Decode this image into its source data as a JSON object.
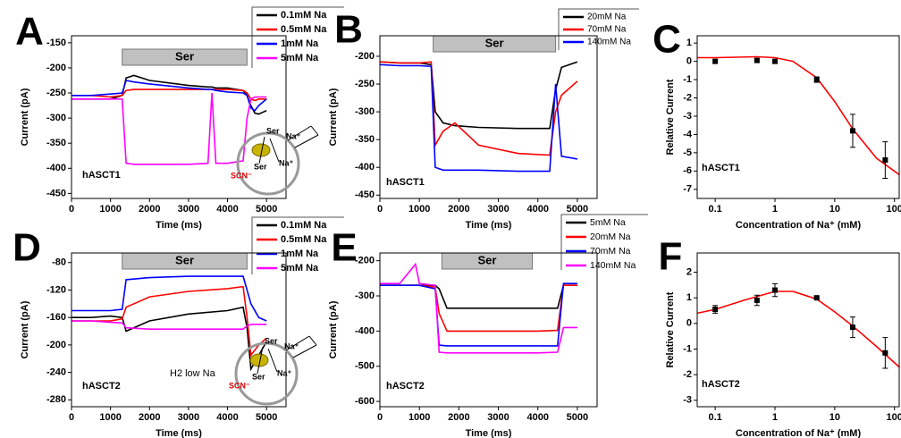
{
  "chart_data": [
    {
      "type": "line",
      "panel_label": "A",
      "x_label": "Time (ms)",
      "y_label": "Current (pA)",
      "xlim": [
        0,
        5500
      ],
      "ylim": [
        -460,
        -136
      ],
      "xticks": [
        0,
        1000,
        2000,
        3000,
        4000,
        5000
      ],
      "yticks": [
        -150,
        -200,
        -250,
        -300,
        -350,
        -400,
        -450
      ],
      "stim_bar": {
        "label": "Ser",
        "x": [
          1300,
          4500
        ]
      },
      "annotations": [
        "hASCT1"
      ],
      "inset_labels": [
        "Ser",
        "Na⁺",
        "Ser",
        "Na⁺",
        "SCN⁻"
      ],
      "x": [
        0,
        500,
        1000,
        1300,
        1400,
        1600,
        2000,
        3000,
        3500,
        3600,
        3700,
        4000,
        4400,
        4500,
        4600,
        4700,
        4800,
        5000
      ],
      "series": [
        {
          "name": "0.1mM Na",
          "color": "#000000",
          "values": [
            -262,
            -262,
            -262,
            -255,
            -220,
            -215,
            -225,
            -235,
            -238,
            -238,
            -240,
            -240,
            -245,
            -255,
            -275,
            -290,
            -292,
            -285
          ]
        },
        {
          "name": "0.5mM Na",
          "color": "#ff0000",
          "values": [
            -255,
            -255,
            -258,
            -255,
            -245,
            -243,
            -243,
            -243,
            -243,
            -243,
            -243,
            -243,
            -245,
            -250,
            -262,
            -265,
            -262,
            -262
          ]
        },
        {
          "name": "1mM Na",
          "color": "#0000ff",
          "values": [
            -255,
            -255,
            -252,
            -250,
            -225,
            -228,
            -232,
            -240,
            -243,
            -243,
            -245,
            -248,
            -250,
            -255,
            -280,
            -285,
            -275,
            -262
          ]
        },
        {
          "name": "5mM Na",
          "color": "#ff00ff",
          "values": [
            -262,
            -262,
            -262,
            -262,
            -390,
            -392,
            -392,
            -392,
            -390,
            -250,
            -390,
            -390,
            -385,
            -300,
            -262,
            -258,
            -258,
            -258
          ]
        }
      ]
    },
    {
      "type": "line",
      "panel_label": "B",
      "x_label": "Time (ms)",
      "y_label": "Current (pA)",
      "xlim": [
        0,
        5500
      ],
      "ylim": [
        -456,
        -163
      ],
      "xticks": [
        0,
        1000,
        2000,
        3000,
        4000,
        5000
      ],
      "yticks": [
        -200,
        -250,
        -300,
        -350,
        -400,
        -450
      ],
      "stim_bar": {
        "label": "Ser",
        "x": [
          1350,
          4450
        ]
      },
      "annotations": [
        "hASCT1"
      ],
      "x": [
        0,
        500,
        900,
        1000,
        1300,
        1400,
        1600,
        1900,
        2500,
        3500,
        4300,
        4450,
        4600,
        5000
      ],
      "series": [
        {
          "name": "20mM Na",
          "color": "#000000",
          "values": [
            -210,
            -212,
            -212,
            -212,
            -215,
            -300,
            -320,
            -325,
            -328,
            -330,
            -330,
            -260,
            -220,
            -210
          ]
        },
        {
          "name": "70mM Na",
          "color": "#ff0000",
          "values": [
            -210,
            -212,
            -212,
            -212,
            -210,
            -360,
            -335,
            -320,
            -360,
            -375,
            -378,
            -300,
            -270,
            -245
          ]
        },
        {
          "name": "140mM Na",
          "color": "#0000ff",
          "values": [
            -215,
            -217,
            -217,
            -217,
            -218,
            -400,
            -405,
            -405,
            -405,
            -407,
            -407,
            -250,
            -380,
            -385
          ]
        }
      ]
    },
    {
      "type": "scatter",
      "panel_label": "C",
      "x_label": "Concentration of Na⁺ (mM)",
      "y_label": "Relative Current",
      "log_x": true,
      "xlim": [
        0.05,
        120
      ],
      "ylim": [
        -7.5,
        1.4
      ],
      "xticks": [
        0.1,
        1,
        10,
        100
      ],
      "yticks": [
        1,
        0,
        -1,
        -2,
        -3,
        -4,
        -5,
        -6,
        -7
      ],
      "annotations": [
        "hASCT1"
      ],
      "color": "#000000",
      "x": [
        0.1,
        0.5,
        1,
        5,
        20,
        70
      ],
      "values": [
        0,
        0.05,
        0,
        -1,
        -3.8,
        -5.4
      ],
      "errors": [
        0.1,
        0.1,
        0.1,
        0.15,
        0.9,
        1.0
      ],
      "fit": {
        "color": "#ff0000",
        "x": [
          0.05,
          0.1,
          0.5,
          1,
          2,
          5,
          10,
          20,
          50,
          120
        ],
        "values": [
          0.2,
          0.2,
          0.25,
          0.2,
          0,
          -0.9,
          -2.2,
          -3.7,
          -5.3,
          -6.2
        ]
      }
    },
    {
      "type": "line",
      "panel_label": "D",
      "x_label": "Time (ms)",
      "y_label": "Current (pA)",
      "xlim": [
        0,
        5500
      ],
      "ylim": [
        -290,
        -66
      ],
      "xticks": [
        0,
        1000,
        2000,
        3000,
        4000,
        5000
      ],
      "yticks": [
        -80,
        -120,
        -160,
        -200,
        -240,
        -280
      ],
      "stim_bar": {
        "label": "Ser",
        "x": [
          1300,
          4500
        ]
      },
      "annotations": [
        "hASCT2",
        "H2 low Na"
      ],
      "inset_labels": [
        "Ser",
        "Na⁺",
        "Ser",
        "Na⁺",
        "SCN⁻"
      ],
      "x": [
        0,
        500,
        1000,
        1300,
        1400,
        2000,
        3000,
        4000,
        4400,
        4500,
        4600,
        4800,
        5000
      ],
      "series": [
        {
          "name": "0.1mM Na",
          "color": "#000000",
          "values": [
            -160,
            -160,
            -158,
            -160,
            -180,
            -165,
            -155,
            -150,
            -145,
            -175,
            -235,
            -215,
            -195
          ]
        },
        {
          "name": "0.5mM Na",
          "color": "#ff0000",
          "values": [
            -165,
            -165,
            -165,
            -162,
            -145,
            -130,
            -122,
            -118,
            -115,
            -160,
            -215,
            -200,
            -190
          ]
        },
        {
          "name": "1mM Na",
          "color": "#0000ff",
          "values": [
            -150,
            -150,
            -150,
            -148,
            -105,
            -102,
            -100,
            -100,
            -100,
            -120,
            -140,
            -160,
            -165
          ]
        },
        {
          "name": "5mM Na",
          "color": "#ff00ff",
          "values": [
            -165,
            -165,
            -167,
            -168,
            -175,
            -177,
            -177,
            -177,
            -177,
            -172,
            -170,
            -170,
            -170
          ]
        }
      ]
    },
    {
      "type": "line",
      "panel_label": "E",
      "x_label": "Time (ms)",
      "y_label": "Current (pA)",
      "xlim": [
        0,
        5500
      ],
      "ylim": [
        -615,
        -178
      ],
      "xticks": [
        0,
        1000,
        2000,
        3000,
        4000,
        5000
      ],
      "yticks": [
        -200,
        -300,
        -400,
        -500,
        -600
      ],
      "stim_bar": {
        "label": "Ser",
        "x": [
          1570,
          3860
        ]
      },
      "annotations": [
        "hASCT2"
      ],
      "x": [
        0,
        500,
        900,
        1000,
        1400,
        1500,
        1700,
        3000,
        4000,
        4500,
        4650,
        5000
      ],
      "series": [
        {
          "name": "5mM Na",
          "color": "#000000",
          "values": [
            -270,
            -270,
            -270,
            -270,
            -270,
            -280,
            -335,
            -335,
            -335,
            -335,
            -270,
            -270
          ]
        },
        {
          "name": "20mM Na",
          "color": "#ff0000",
          "values": [
            -270,
            -270,
            -270,
            -270,
            -275,
            -350,
            -400,
            -400,
            -400,
            -398,
            -270,
            -270
          ]
        },
        {
          "name": "70mM Na",
          "color": "#0000ff",
          "values": [
            -270,
            -270,
            -270,
            -270,
            -280,
            -440,
            -442,
            -442,
            -442,
            -442,
            -265,
            -265
          ]
        },
        {
          "name": "140mM Na",
          "color": "#ff00ff",
          "values": [
            -265,
            -265,
            -210,
            -265,
            -270,
            -460,
            -462,
            -462,
            -462,
            -460,
            -390,
            -390
          ]
        }
      ]
    },
    {
      "type": "scatter",
      "panel_label": "F",
      "x_label": "Concentration of Na⁺ (mM)",
      "y_label": "Relative Current",
      "log_x": true,
      "xlim": [
        0.05,
        120
      ],
      "ylim": [
        -3.25,
        2.75
      ],
      "xticks": [
        0.1,
        1,
        10,
        100
      ],
      "yticks": [
        2,
        1,
        0,
        -1,
        -2,
        -3
      ],
      "annotations": [
        "hASCT2"
      ],
      "color": "#000000",
      "x": [
        0.1,
        0.5,
        1,
        5,
        20,
        70
      ],
      "values": [
        0.55,
        0.9,
        1.3,
        1.0,
        -0.15,
        -1.15
      ],
      "errors": [
        0.15,
        0.2,
        0.25,
        0.05,
        0.4,
        0.6
      ],
      "fit": {
        "color": "#ff0000",
        "x": [
          0.05,
          0.1,
          0.3,
          1,
          2,
          5,
          10,
          20,
          50,
          120
        ],
        "values": [
          0.4,
          0.55,
          0.9,
          1.25,
          1.25,
          0.95,
          0.45,
          -0.1,
          -0.9,
          -1.7
        ]
      }
    }
  ]
}
